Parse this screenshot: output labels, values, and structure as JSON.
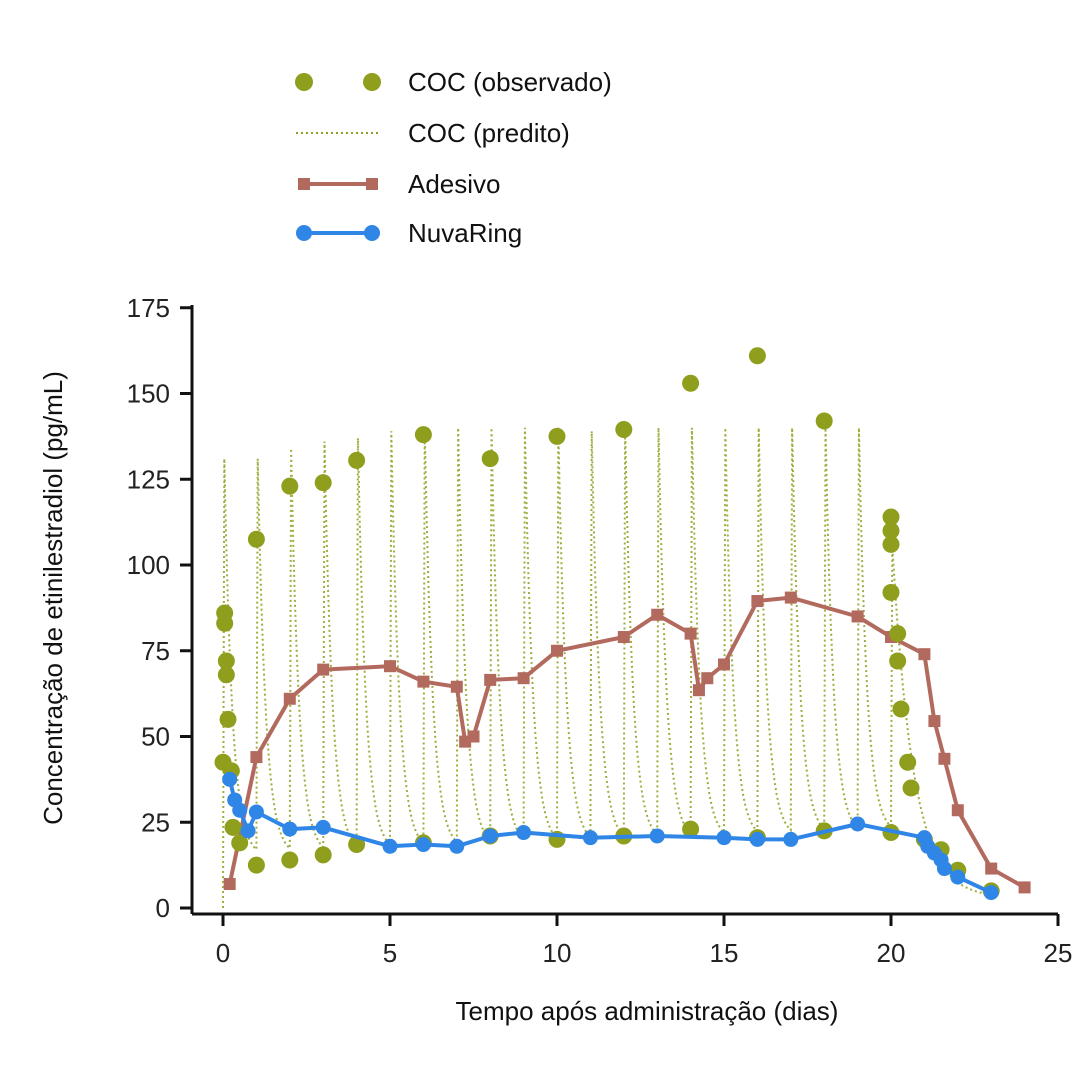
{
  "chart_data": {
    "type": "line",
    "xlabel": "Tempo após administração (dias)",
    "ylabel": "Concentração de etinilestradiol (pg/mL)",
    "xlim": [
      0,
      25
    ],
    "ylim": [
      0,
      175
    ],
    "x_ticks": [
      0,
      5,
      10,
      15,
      20,
      25
    ],
    "y_ticks": [
      0,
      25,
      50,
      75,
      100,
      125,
      150,
      175
    ],
    "grid": false,
    "legend_position": "top-left",
    "colors": {
      "coc": "#8f9e1c",
      "adesivo": "#b36a5e",
      "nuvaring": "#2f86e6",
      "axis": "#111111"
    },
    "series": [
      {
        "name": "COC (observado)",
        "kind": "scatter",
        "points": [
          [
            0.05,
            86
          ],
          [
            0.05,
            83
          ],
          [
            0.1,
            72
          ],
          [
            0.1,
            68
          ],
          [
            0.15,
            55
          ],
          [
            0.0,
            42.5
          ],
          [
            0.25,
            40
          ],
          [
            0.3,
            23.5
          ],
          [
            0.5,
            19
          ],
          [
            1.0,
            107.5
          ],
          [
            1.0,
            12.5
          ],
          [
            2.0,
            123
          ],
          [
            2.0,
            14
          ],
          [
            3.0,
            124
          ],
          [
            3.0,
            15.5
          ],
          [
            4.0,
            130.5
          ],
          [
            4.0,
            18.5
          ],
          [
            6.0,
            138
          ],
          [
            6.0,
            19
          ],
          [
            8.0,
            131
          ],
          [
            8.0,
            21
          ],
          [
            10.0,
            137.5
          ],
          [
            10.0,
            20
          ],
          [
            12.0,
            139.5
          ],
          [
            12.0,
            21
          ],
          [
            14.0,
            153
          ],
          [
            14.0,
            23
          ],
          [
            16.0,
            161
          ],
          [
            16.0,
            20.5
          ],
          [
            18.0,
            142
          ],
          [
            18.0,
            22.5
          ],
          [
            20.0,
            114
          ],
          [
            20.0,
            110
          ],
          [
            20.0,
            106
          ],
          [
            20.0,
            92
          ],
          [
            20.0,
            22
          ],
          [
            20.2,
            80
          ],
          [
            20.2,
            72
          ],
          [
            20.3,
            58
          ],
          [
            20.5,
            42.5
          ],
          [
            20.6,
            35
          ],
          [
            21.0,
            20
          ],
          [
            21.5,
            17
          ],
          [
            22.0,
            11
          ],
          [
            23.0,
            5
          ]
        ]
      },
      {
        "name": "COC (predito)",
        "kind": "dotted-line",
        "dose_days": [
          0,
          1,
          2,
          3,
          4,
          5,
          6,
          7,
          8,
          9,
          10,
          11,
          12,
          13,
          14,
          15,
          16,
          17,
          18,
          19,
          20
        ],
        "peak": 131,
        "peak_values": [
          131,
          131,
          134,
          136,
          137,
          139,
          140,
          140,
          140,
          140,
          140,
          139,
          140,
          140,
          140,
          140,
          140,
          140,
          140,
          140,
          105
        ]
      },
      {
        "name": "Adesivo",
        "kind": "line-square",
        "points": [
          [
            0.2,
            7
          ],
          [
            1.0,
            44
          ],
          [
            2.0,
            61
          ],
          [
            3.0,
            69.5
          ],
          [
            5.0,
            70.5
          ],
          [
            6.0,
            66
          ],
          [
            7.0,
            64.5
          ],
          [
            7.25,
            48.5
          ],
          [
            7.5,
            50
          ],
          [
            8.0,
            66.5
          ],
          [
            9.0,
            67
          ],
          [
            10.0,
            75
          ],
          [
            12.0,
            79
          ],
          [
            13.0,
            85.5
          ],
          [
            14.0,
            80
          ],
          [
            14.25,
            63.5
          ],
          [
            14.5,
            67
          ],
          [
            15.0,
            71
          ],
          [
            16.0,
            89.5
          ],
          [
            17.0,
            90.5
          ],
          [
            19.0,
            85
          ],
          [
            20.0,
            79
          ],
          [
            21.0,
            74
          ],
          [
            21.3,
            54.5
          ],
          [
            21.6,
            43.5
          ],
          [
            22.0,
            28.5
          ],
          [
            23.0,
            11.5
          ],
          [
            24.0,
            6
          ]
        ]
      },
      {
        "name": "NuvaRing",
        "kind": "line-circle",
        "points": [
          [
            0.2,
            37.5
          ],
          [
            0.35,
            31.5
          ],
          [
            0.5,
            28.5
          ],
          [
            0.75,
            22.5
          ],
          [
            1.0,
            28
          ],
          [
            2.0,
            23
          ],
          [
            3.0,
            23.5
          ],
          [
            5.0,
            18
          ],
          [
            6.0,
            18.5
          ],
          [
            7.0,
            18
          ],
          [
            8.0,
            21
          ],
          [
            9.0,
            22
          ],
          [
            11.0,
            20.5
          ],
          [
            13.0,
            21
          ],
          [
            15.0,
            20.5
          ],
          [
            16.0,
            20
          ],
          [
            17.0,
            20
          ],
          [
            19.0,
            24.5
          ],
          [
            21.0,
            20.5
          ],
          [
            21.1,
            18
          ],
          [
            21.3,
            16
          ],
          [
            21.5,
            14
          ],
          [
            21.6,
            11.5
          ],
          [
            22.0,
            9
          ],
          [
            23.0,
            4.5
          ]
        ]
      }
    ]
  }
}
